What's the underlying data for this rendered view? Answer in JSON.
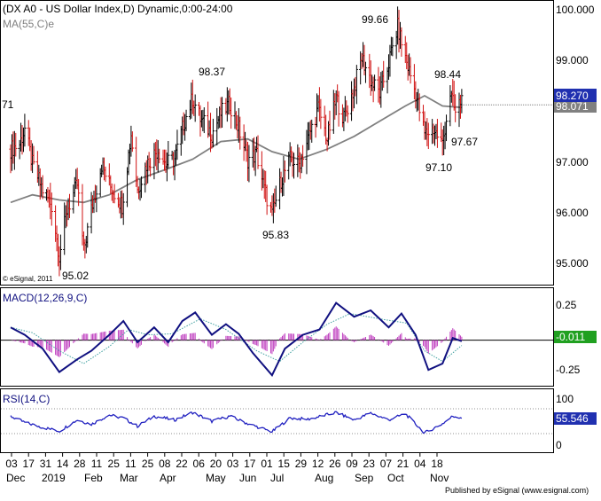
{
  "header": {
    "title": "(DX A0 - US Dollar Index,D) Dynamic,0:00-24:00",
    "ma_label": "MA(55,C)e",
    "left_cut_label": "71",
    "copyright": "© eSignal, 2011"
  },
  "chart_data": [
    {
      "type": "ohlc",
      "panel": "price",
      "y_ticks": [
        "100.000",
        "99.000",
        "98.000",
        "97.000",
        "96.000",
        "95.000"
      ],
      "ylim": [
        94.55,
        100.1
      ],
      "last_price_label": "98.270",
      "ma_value_label": "98.071",
      "annotations": [
        "99.66",
        "98.37",
        "98.44",
        "97.67",
        "97.10",
        "95.83",
        "95.02"
      ],
      "colors": {
        "up": "#000000",
        "down": "#d01010",
        "ma": "#808080",
        "price_box": "#2030b0"
      },
      "close_path": [
        [
          "2018-12-03",
          97.2
        ],
        [
          "2018-12-10",
          97.3
        ],
        [
          "2018-12-14",
          97.6
        ],
        [
          "2018-12-20",
          96.9
        ],
        [
          "2018-12-28",
          96.4
        ],
        [
          "2019-01-04",
          96.1
        ],
        [
          "2019-01-10",
          95.1
        ],
        [
          "2019-01-16",
          96.0
        ],
        [
          "2019-01-24",
          96.5
        ],
        [
          "2019-01-29",
          95.2
        ],
        [
          "2019-02-04",
          96.0
        ],
        [
          "2019-02-12",
          96.9
        ],
        [
          "2019-02-18",
          96.5
        ],
        [
          "2019-02-28",
          96.1
        ],
        [
          "2019-03-07",
          97.5
        ],
        [
          "2019-03-12",
          96.4
        ],
        [
          "2019-03-19",
          96.9
        ],
        [
          "2019-03-28",
          97.2
        ],
        [
          "2019-04-03",
          96.9
        ],
        [
          "2019-04-10",
          97.0
        ],
        [
          "2019-04-17",
          97.7
        ],
        [
          "2019-04-24",
          98.2
        ],
        [
          "2019-04-30",
          97.8
        ],
        [
          "2019-05-09",
          97.5
        ],
        [
          "2019-05-16",
          97.9
        ],
        [
          "2019-05-23",
          98.1
        ],
        [
          "2019-05-30",
          97.6
        ],
        [
          "2019-06-06",
          97.0
        ],
        [
          "2019-06-13",
          97.1
        ],
        [
          "2019-06-19",
          96.4
        ],
        [
          "2019-06-25",
          95.9
        ],
        [
          "2019-07-02",
          96.6
        ],
        [
          "2019-07-09",
          97.0
        ],
        [
          "2019-07-16",
          96.9
        ],
        [
          "2019-07-23",
          97.4
        ],
        [
          "2019-07-31",
          98.0
        ],
        [
          "2019-08-07",
          97.4
        ],
        [
          "2019-08-14",
          98.2
        ],
        [
          "2019-08-20",
          97.8
        ],
        [
          "2019-08-28",
          98.4
        ],
        [
          "2019-09-03",
          99.0
        ],
        [
          "2019-09-11",
          98.5
        ],
        [
          "2019-09-17",
          98.3
        ],
        [
          "2019-09-24",
          98.9
        ],
        [
          "2019-10-01",
          99.6
        ],
        [
          "2019-10-07",
          99.0
        ],
        [
          "2019-10-15",
          98.3
        ],
        [
          "2019-10-22",
          97.5
        ],
        [
          "2019-10-29",
          97.6
        ],
        [
          "2019-11-05",
          97.3
        ],
        [
          "2019-11-11",
          98.3
        ],
        [
          "2019-11-15",
          97.9
        ],
        [
          "2019-11-20",
          98.2
        ]
      ],
      "ma_path": [
        [
          "2018-12-03",
          96.15
        ],
        [
          "2018-12-20",
          96.3
        ],
        [
          "2019-01-10",
          96.2
        ],
        [
          "2019-01-29",
          96.15
        ],
        [
          "2019-02-18",
          96.3
        ],
        [
          "2019-03-12",
          96.6
        ],
        [
          "2019-04-03",
          96.8
        ],
        [
          "2019-04-24",
          97.0
        ],
        [
          "2019-05-16",
          97.35
        ],
        [
          "2019-06-06",
          97.4
        ],
        [
          "2019-06-25",
          97.15
        ],
        [
          "2019-07-16",
          97.0
        ],
        [
          "2019-08-07",
          97.2
        ],
        [
          "2019-08-28",
          97.45
        ],
        [
          "2019-09-17",
          97.75
        ],
        [
          "2019-10-07",
          98.05
        ],
        [
          "2019-10-22",
          98.25
        ],
        [
          "2019-11-05",
          98.05
        ],
        [
          "2019-11-20",
          98.02
        ]
      ]
    },
    {
      "type": "line+histogram",
      "panel": "macd",
      "label": "MACD(12,26,9,C)",
      "y_ticks": [
        "0.25",
        "-0.25"
      ],
      "ylim": [
        -0.42,
        0.48
      ],
      "value_label": "-0.011",
      "colors": {
        "macd": "#101080",
        "signal": "#40a0a0",
        "histogram": "#c040c0",
        "value_box": "#20a020"
      },
      "macd_path": [
        [
          "2018-12-03",
          0.12
        ],
        [
          "2018-12-14",
          0.05
        ],
        [
          "2018-12-28",
          -0.08
        ],
        [
          "2019-01-10",
          -0.3
        ],
        [
          "2019-01-24",
          -0.18
        ],
        [
          "2019-02-04",
          -0.1
        ],
        [
          "2019-02-18",
          0.05
        ],
        [
          "2019-03-01",
          0.18
        ],
        [
          "2019-03-12",
          -0.02
        ],
        [
          "2019-03-25",
          0.12
        ],
        [
          "2019-04-05",
          -0.02
        ],
        [
          "2019-04-16",
          0.18
        ],
        [
          "2019-04-26",
          0.26
        ],
        [
          "2019-05-09",
          0.05
        ],
        [
          "2019-05-20",
          0.15
        ],
        [
          "2019-05-30",
          0.06
        ],
        [
          "2019-06-10",
          -0.12
        ],
        [
          "2019-06-25",
          -0.33
        ],
        [
          "2019-07-05",
          -0.08
        ],
        [
          "2019-07-19",
          0.05
        ],
        [
          "2019-08-01",
          0.1
        ],
        [
          "2019-08-14",
          0.35
        ],
        [
          "2019-08-28",
          0.22
        ],
        [
          "2019-09-10",
          0.28
        ],
        [
          "2019-09-24",
          0.12
        ],
        [
          "2019-10-04",
          0.25
        ],
        [
          "2019-10-15",
          0.05
        ],
        [
          "2019-10-25",
          -0.28
        ],
        [
          "2019-11-05",
          -0.22
        ],
        [
          "2019-11-13",
          0.02
        ],
        [
          "2019-11-20",
          -0.01
        ]
      ],
      "signal_path": [
        [
          "2018-12-03",
          0.12
        ],
        [
          "2018-12-20",
          0.07
        ],
        [
          "2019-01-10",
          -0.1
        ],
        [
          "2019-01-29",
          -0.22
        ],
        [
          "2019-02-18",
          -0.06
        ],
        [
          "2019-03-05",
          0.1
        ],
        [
          "2019-03-20",
          0.05
        ],
        [
          "2019-04-08",
          0.06
        ],
        [
          "2019-04-30",
          0.2
        ],
        [
          "2019-05-20",
          0.1
        ],
        [
          "2019-06-13",
          -0.1
        ],
        [
          "2019-07-01",
          -0.2
        ],
        [
          "2019-07-19",
          -0.02
        ],
        [
          "2019-08-07",
          0.15
        ],
        [
          "2019-08-25",
          0.25
        ],
        [
          "2019-09-17",
          0.2
        ],
        [
          "2019-10-08",
          0.16
        ],
        [
          "2019-10-22",
          -0.1
        ],
        [
          "2019-11-05",
          -0.2
        ],
        [
          "2019-11-20",
          -0.05
        ]
      ]
    },
    {
      "type": "line",
      "panel": "rsi",
      "label": "RSI(14,C)",
      "y_ticks": [
        "100",
        "0"
      ],
      "ylim": [
        0,
        100
      ],
      "value_label": "55.546",
      "colors": {
        "rsi": "#2020c0",
        "value_box": "#2030b0"
      },
      "rsi_path": [
        [
          "2018-12-03",
          58
        ],
        [
          "2018-12-14",
          48
        ],
        [
          "2018-12-28",
          40
        ],
        [
          "2019-01-10",
          34
        ],
        [
          "2019-01-24",
          52
        ],
        [
          "2019-02-04",
          45
        ],
        [
          "2019-02-18",
          60
        ],
        [
          "2019-03-01",
          55
        ],
        [
          "2019-03-12",
          42
        ],
        [
          "2019-03-25",
          58
        ],
        [
          "2019-04-10",
          52
        ],
        [
          "2019-04-24",
          64
        ],
        [
          "2019-05-09",
          50
        ],
        [
          "2019-05-23",
          58
        ],
        [
          "2019-06-06",
          46
        ],
        [
          "2019-06-25",
          33
        ],
        [
          "2019-07-09",
          55
        ],
        [
          "2019-07-23",
          53
        ],
        [
          "2019-08-14",
          64
        ],
        [
          "2019-08-28",
          52
        ],
        [
          "2019-09-10",
          63
        ],
        [
          "2019-09-24",
          52
        ],
        [
          "2019-10-07",
          62
        ],
        [
          "2019-10-22",
          31
        ],
        [
          "2019-11-05",
          46
        ],
        [
          "2019-11-13",
          58
        ],
        [
          "2019-11-20",
          56
        ]
      ]
    }
  ],
  "x_axis": {
    "days": [
      "03",
      "17",
      "31",
      "14",
      "28",
      "11",
      "25",
      "11",
      "25",
      "08",
      "22",
      "06",
      "20",
      "03",
      "17",
      "01",
      "15",
      "29",
      "12",
      "26",
      "09",
      "23",
      "07",
      "21",
      "04",
      "18"
    ],
    "months": [
      "Dec",
      "2019",
      "Feb",
      "Mar",
      "Apr",
      "May",
      "Jun",
      "Jul",
      "Aug",
      "Sep",
      "Oct",
      "Nov"
    ],
    "start_date": "2018-12-03",
    "end_date": "2019-11-18"
  },
  "footer": {
    "published": "Published by eSignal (www.esignal.com)"
  }
}
